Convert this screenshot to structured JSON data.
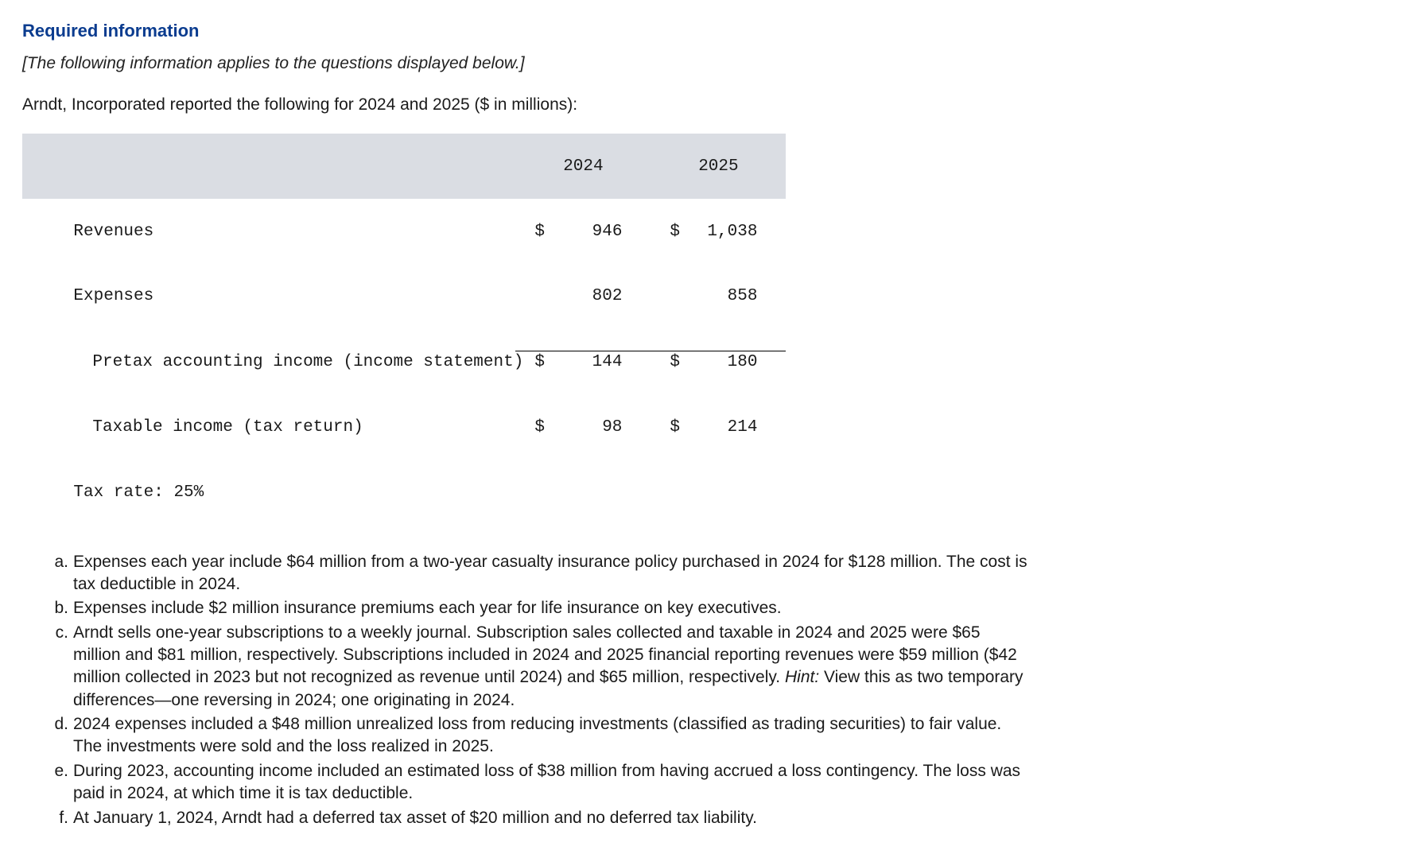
{
  "heading": "Required information",
  "intro_italic": "[The following information applies to the questions displayed below.]",
  "lead": "Arndt, Incorporated reported the following for 2024 and 2025 ($ in millions):",
  "table": {
    "header_bg": "#dadde3",
    "year1_label": "2024",
    "year2_label": "2025",
    "rows": {
      "revenues": {
        "label": "Revenues",
        "y1_dollar": "$",
        "y1": "946",
        "y2_dollar": "$",
        "y2": "1,038"
      },
      "expenses": {
        "label": "Expenses",
        "y1_dollar": "",
        "y1": "802",
        "y2_dollar": "",
        "y2": "858"
      },
      "pretax": {
        "label": "Pretax accounting income (income statement)",
        "y1_dollar": "$",
        "y1": "144",
        "y2_dollar": "$",
        "y2": "180"
      },
      "taxable": {
        "label": "Taxable income (tax return)",
        "y1_dollar": "$",
        "y1": "98",
        "y2_dollar": "$",
        "y2": "214"
      }
    },
    "tax_rate_label": "Tax rate: 25%"
  },
  "notes": {
    "a": {
      "m": "a.",
      "t": "Expenses each year include $64 million from a two-year casualty insurance policy purchased in 2024 for $128 million. The cost is tax deductible in 2024."
    },
    "b": {
      "m": "b.",
      "t": "Expenses include $2 million insurance premiums each year for life insurance on key executives."
    },
    "c": {
      "m": "c.",
      "pre": "Arndt sells one-year subscriptions to a weekly journal. Subscription sales collected and taxable in 2024 and 2025 were $65 million and $81 million, respectively. Subscriptions included in 2024 and 2025 financial reporting revenues were $59 million ($42 million collected in 2023 but not recognized as revenue until 2024) and $65 million, respectively. ",
      "hint_label": "Hint:",
      "hint": " View this as two temporary differences—one reversing in 2024; one originating in 2024."
    },
    "d": {
      "m": "d.",
      "t": "2024 expenses included a $48 million unrealized loss from reducing investments (classified as trading securities) to fair value. The investments were sold and the loss realized in 2025."
    },
    "e": {
      "m": "e.",
      "t": "During 2023, accounting income included an estimated loss of $38 million from having accrued a loss contingency. The loss was paid in 2024, at which time it is tax deductible."
    },
    "f": {
      "m": "f.",
      "t": "At January 1, 2024, Arndt had a deferred tax asset of $20 million and no deferred tax liability."
    }
  },
  "colors": {
    "heading": "#0b3c8f",
    "body_text": "#1a1a1a",
    "background": "#ffffff"
  }
}
